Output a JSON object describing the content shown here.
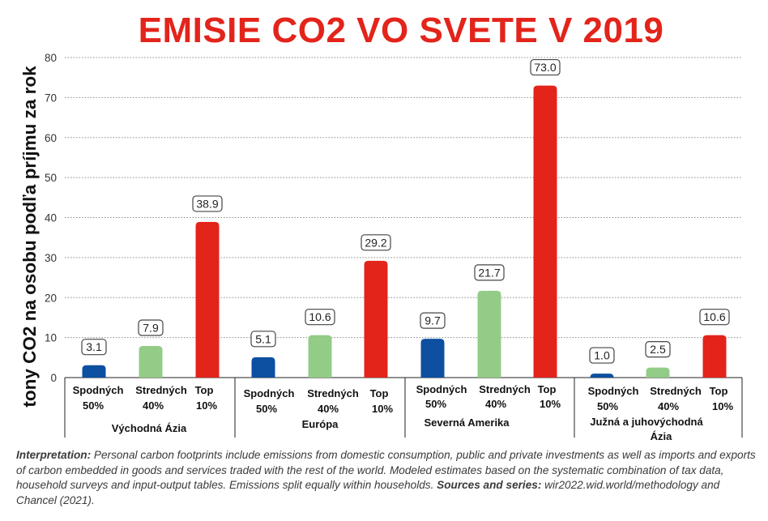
{
  "chart_data": {
    "type": "bar",
    "title": "EMISIE CO2 VO SVETE V 2019",
    "ylabel": "tony CO2 na osobu podľa príjmu za rok",
    "xlabel": "",
    "ylim": [
      0,
      80
    ],
    "yticks": [
      "0",
      "10",
      "20",
      "30",
      "40",
      "50",
      "60",
      "70",
      "80"
    ],
    "grid": true,
    "groups": [
      {
        "label": "Východná Ázia",
        "bars": [
          {
            "label_top": "Spodných",
            "label_bottom": "50%",
            "value": 3.1,
            "value_label": "3.1"
          },
          {
            "label_top": "Stredných",
            "label_bottom": "40%",
            "value": 7.9,
            "value_label": "7.9"
          },
          {
            "label_top": "Top",
            "label_bottom": "10%",
            "value": 38.9,
            "value_label": "38.9"
          }
        ]
      },
      {
        "label": "Európa",
        "bars": [
          {
            "label_top": "Spodných",
            "label_bottom": "50%",
            "value": 5.1,
            "value_label": "5.1"
          },
          {
            "label_top": "Stredných",
            "label_bottom": "40%",
            "value": 10.6,
            "value_label": "10.6"
          },
          {
            "label_top": "Top",
            "label_bottom": "10%",
            "value": 29.2,
            "value_label": "29.2"
          }
        ]
      },
      {
        "label": "Severná Amerika",
        "bars": [
          {
            "label_top": "Spodných",
            "label_bottom": "50%",
            "value": 9.7,
            "value_label": "9.7"
          },
          {
            "label_top": "Stredných",
            "label_bottom": "40%",
            "value": 21.7,
            "value_label": "21.7"
          },
          {
            "label_top": "Top",
            "label_bottom": "10%",
            "value": 73.0,
            "value_label": "73.0"
          }
        ]
      },
      {
        "label": "Južná a juhovýchodná Ázia",
        "bars": [
          {
            "label_top": "Spodných",
            "label_bottom": "50%",
            "value": 1.0,
            "value_label": "1.0"
          },
          {
            "label_top": "Stredných",
            "label_bottom": "40%",
            "value": 2.5,
            "value_label": "2.5"
          },
          {
            "label_top": "Top",
            "label_bottom": "10%",
            "value": 10.6,
            "value_label": "10.6"
          }
        ]
      }
    ],
    "colors": [
      "#0d4fa0",
      "#93cc86",
      "#e3241b"
    ]
  },
  "interpretation": {
    "lead": "Interpretation:",
    "body": " Personal carbon footprints include emissions from domestic consumption, public and private investments as well as imports and exports of carbon embedded in goods and services traded with the rest of the world. Modeled estimates based on the systematic combination of tax data, household surveys and input-output tables. Emissions split equally within households. ",
    "sources_lead": "Sources and series:",
    "sources_body": " wir2022.wid.world/methodology and Chancel (2021)."
  }
}
